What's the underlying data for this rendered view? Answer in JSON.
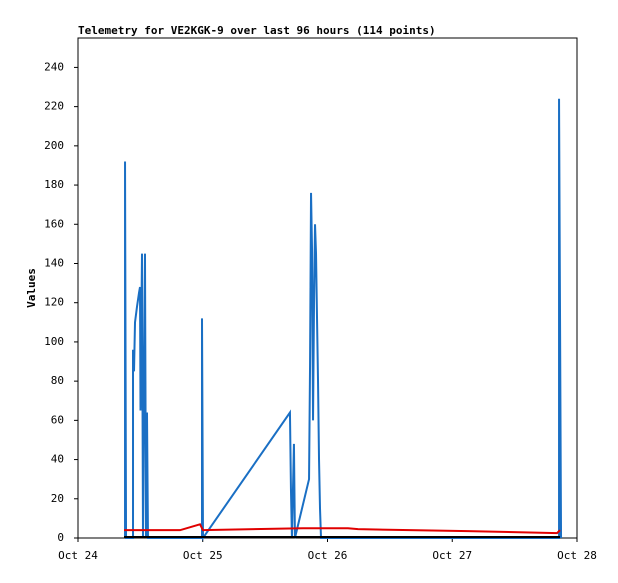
{
  "chart_data": {
    "type": "line",
    "title": "Telemetry for VE2KGK-9 over last 96 hours (114 points)",
    "y_label": "Values",
    "xlim": [
      0,
      4
    ],
    "ylim": [
      0,
      255
    ],
    "xticks": [
      {
        "value": 0,
        "label": "Oct 24"
      },
      {
        "value": 1,
        "label": "Oct 25"
      },
      {
        "value": 2,
        "label": "Oct 26"
      },
      {
        "value": 3,
        "label": "Oct 27"
      },
      {
        "value": 4,
        "label": "Oct 28"
      }
    ],
    "yticks": [
      0,
      20,
      40,
      60,
      80,
      100,
      120,
      140,
      160,
      180,
      200,
      220,
      240
    ],
    "series": [
      {
        "color": "#1a6fc4",
        "x": [
          0.377,
          0.377,
          0.385,
          0.441,
          0.441,
          0.449,
          0.457,
          0.473,
          0.489,
          0.497,
          0.501,
          0.513,
          0.521,
          0.537,
          0.545,
          0.553,
          0.561,
          0.994,
          0.994,
          1.002,
          1.699,
          1.707,
          1.715,
          1.731,
          1.739,
          1.852,
          1.86,
          1.868,
          1.876,
          1.884,
          1.892,
          1.9,
          1.908,
          1.916,
          1.924,
          1.932,
          1.94,
          1.948,
          3.856,
          3.856,
          3.864,
          3.872
        ],
        "values": [
          0,
          192,
          0,
          0,
          96,
          85,
          110,
          118,
          125,
          128,
          65,
          145,
          0,
          145,
          0,
          64,
          0,
          0,
          112,
          0,
          64,
          25,
          0,
          48,
          0,
          30,
          88,
          176,
          147,
          60,
          120,
          160,
          145,
          112,
          80,
          40,
          15,
          0,
          0,
          224,
          112,
          0
        ]
      },
      {
        "color": "#e00000",
        "x": [
          0.369,
          0.818,
          0.978,
          1.002,
          1.804,
          2.164,
          2.244,
          3.126,
          3.84,
          3.864
        ],
        "values": [
          4,
          4,
          7,
          4,
          5,
          5,
          4.5,
          3.5,
          2.5,
          4
        ]
      },
      {
        "color": "#000000",
        "x": [
          0.369,
          3.864
        ],
        "values": [
          0.5,
          0.5
        ]
      }
    ]
  }
}
